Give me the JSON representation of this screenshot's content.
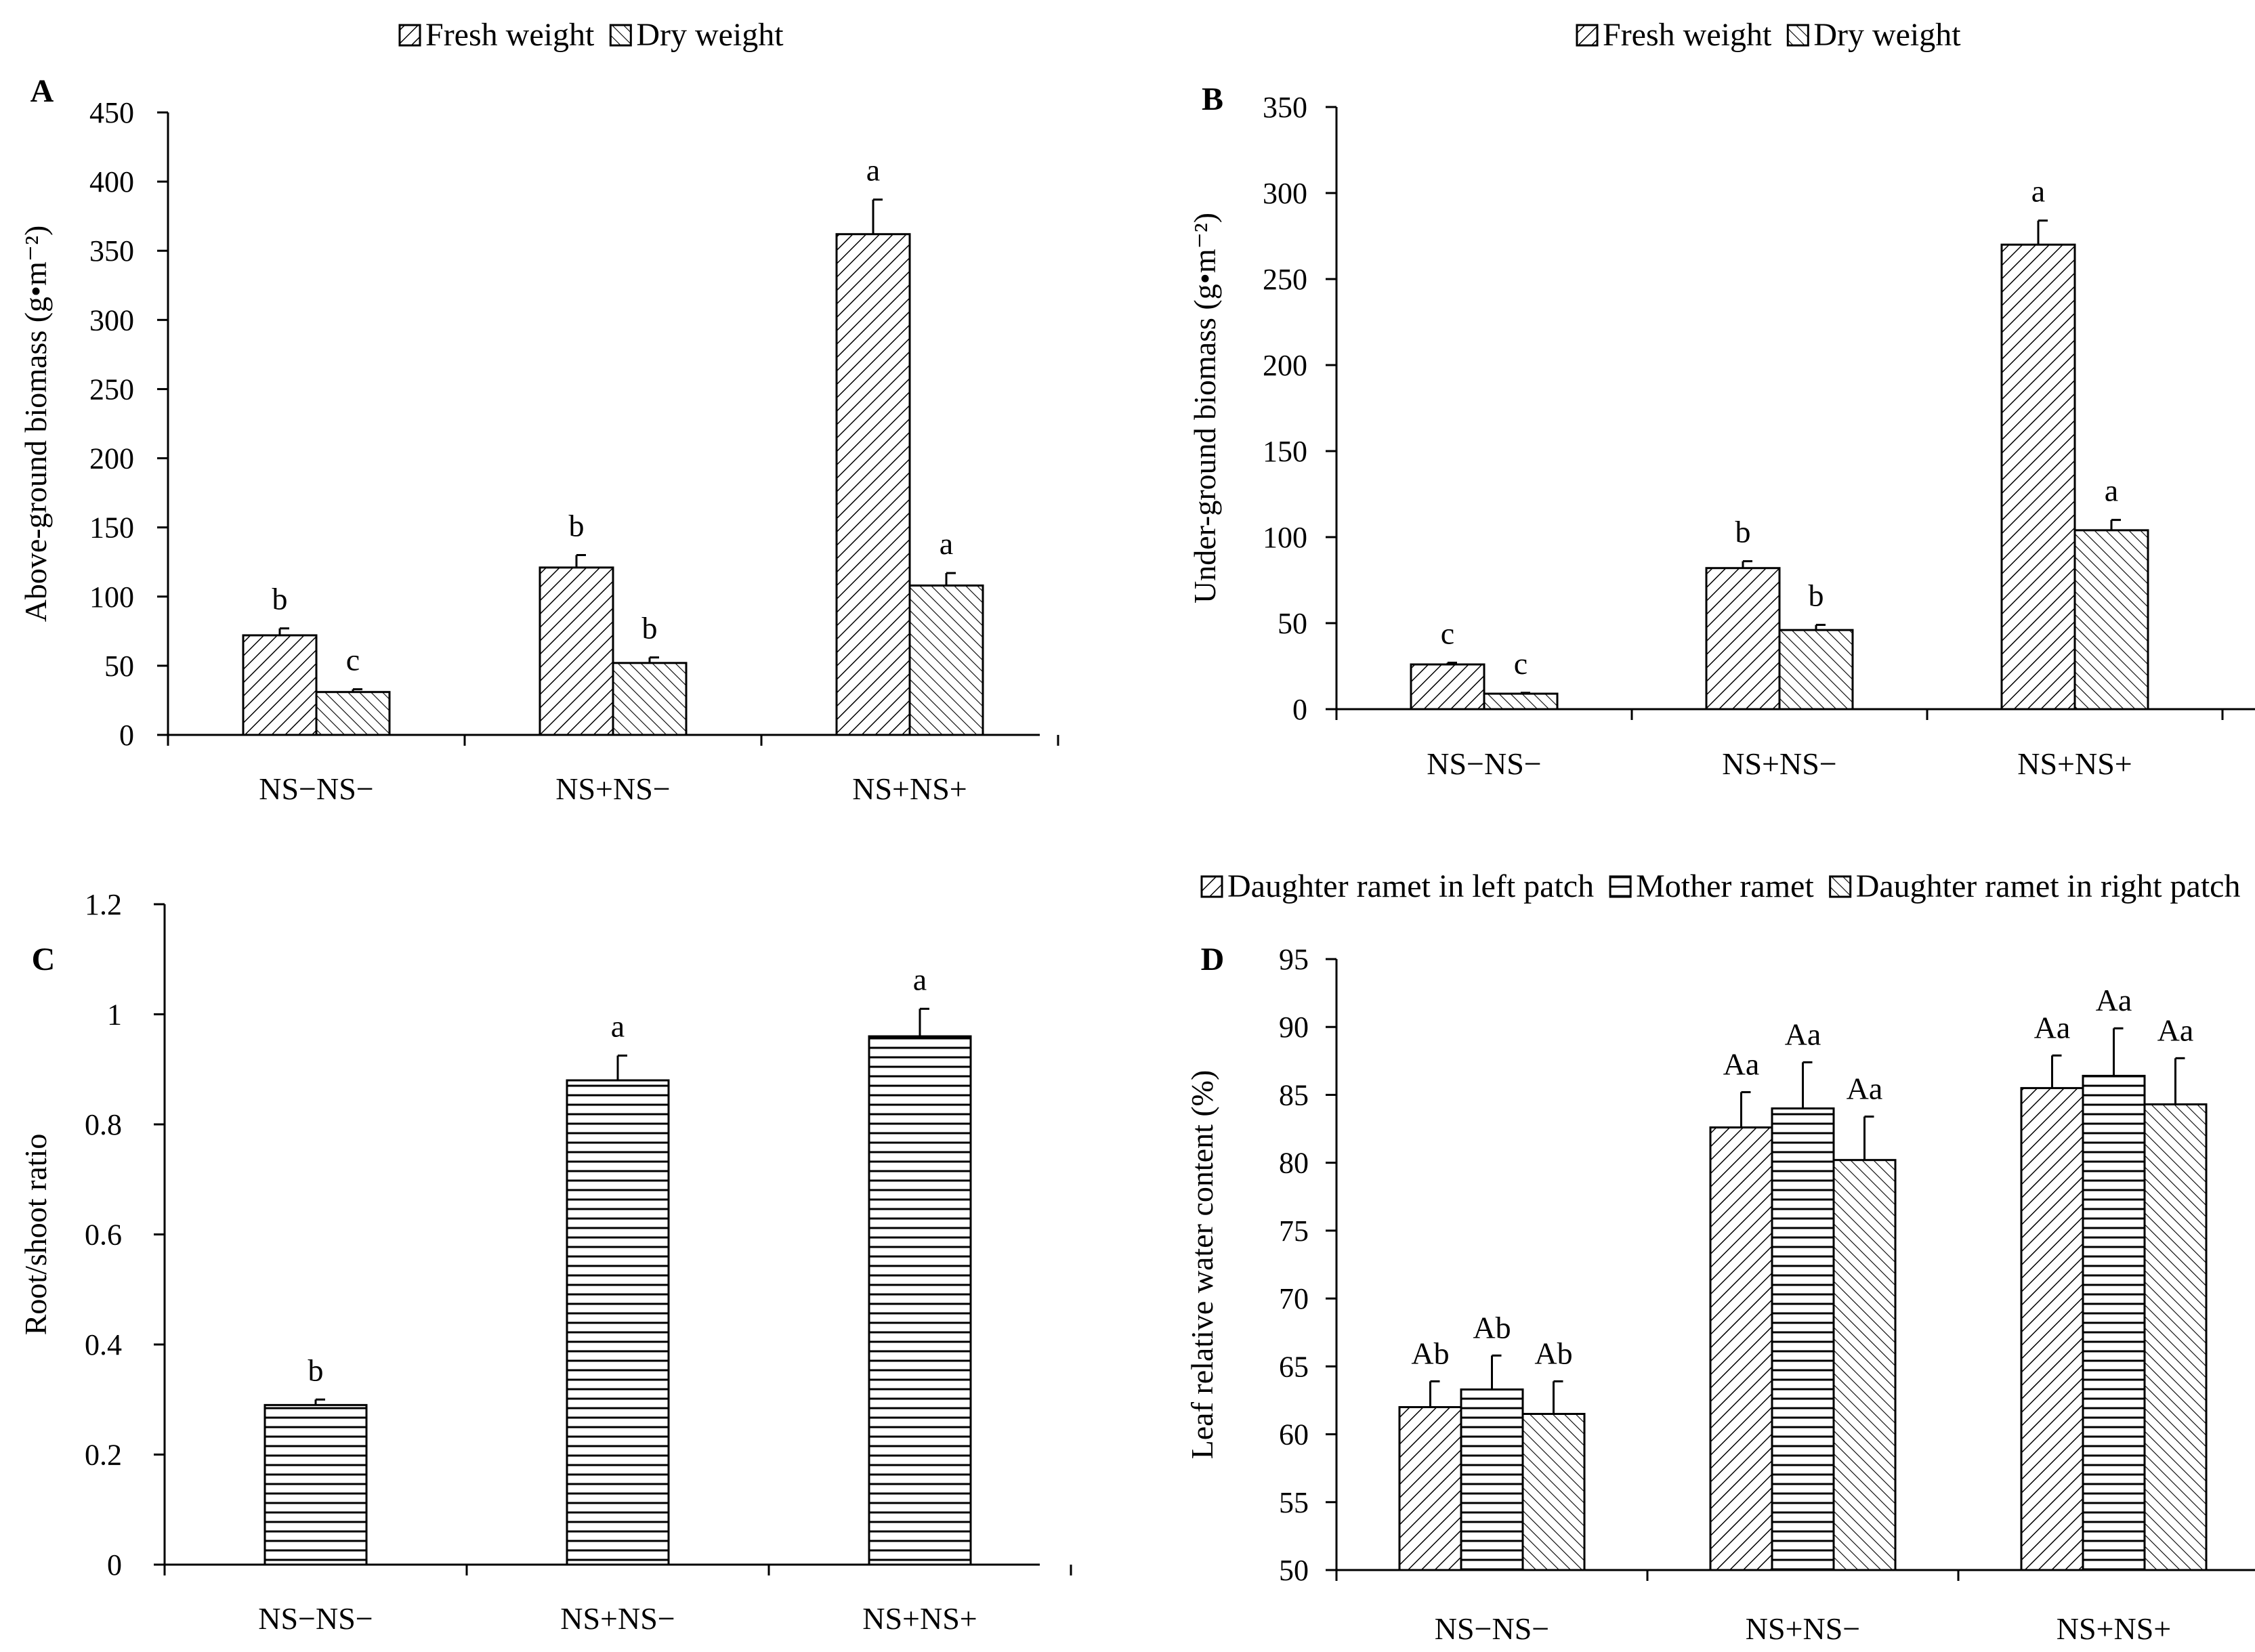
{
  "chart_data": [
    {
      "panel": "A",
      "type": "bar",
      "ylabel": "Above-ground biomass (g•m⁻²)",
      "ylim": [
        0,
        450
      ],
      "yticks": [
        "0",
        "50",
        "100",
        "150",
        "200",
        "250",
        "300",
        "350",
        "400",
        "450"
      ],
      "categories": [
        "NS−NS−",
        "NS+NS−",
        "NS+NS+"
      ],
      "legend": [
        "Fresh weight",
        "Dry weight"
      ],
      "series": [
        {
          "name": "Fresh weight",
          "pattern": "diag",
          "values": [
            72,
            121,
            362
          ],
          "errors": [
            5,
            9,
            25
          ],
          "labels": [
            "b",
            "b",
            "a"
          ]
        },
        {
          "name": "Dry weight",
          "pattern": "back",
          "values": [
            31,
            52,
            108
          ],
          "errors": [
            2,
            4,
            9
          ],
          "labels": [
            "c",
            "b",
            "a"
          ]
        }
      ]
    },
    {
      "panel": "B",
      "type": "bar",
      "ylabel": "Under-ground biomass (g•m⁻²)",
      "ylim": [
        0,
        350
      ],
      "yticks": [
        "0",
        "50",
        "100",
        "150",
        "200",
        "250",
        "300",
        "350"
      ],
      "categories": [
        "NS−NS−",
        "NS+NS−",
        "NS+NS+"
      ],
      "legend": [
        "Fresh weight",
        "Dry weight"
      ],
      "series": [
        {
          "name": "Fresh weight",
          "pattern": "diag",
          "values": [
            26,
            82,
            270
          ],
          "errors": [
            1,
            4,
            14
          ],
          "labels": [
            "c",
            "b",
            "a"
          ]
        },
        {
          "name": "Dry weight",
          "pattern": "back",
          "values": [
            9,
            46,
            104
          ],
          "errors": [
            0.5,
            3,
            6
          ],
          "labels": [
            "c",
            "b",
            "a"
          ]
        }
      ]
    },
    {
      "panel": "C",
      "type": "bar",
      "ylabel": "Root/shoot ratio",
      "ylim": [
        0,
        1.2
      ],
      "yticks": [
        "0",
        "0.2",
        "0.4",
        "0.6",
        "0.8",
        "1",
        "1.2"
      ],
      "categories": [
        "NS−NS−",
        "NS+NS−",
        "NS+NS+"
      ],
      "legend": [],
      "series": [
        {
          "name": "Root/shoot ratio",
          "pattern": "horiz",
          "values": [
            0.29,
            0.88,
            0.96
          ],
          "errors": [
            0.01,
            0.045,
            0.05
          ],
          "labels": [
            "b",
            "a",
            "a"
          ]
        }
      ]
    },
    {
      "panel": "D",
      "type": "bar",
      "ylabel": "Leaf relative water content (%)",
      "ylim": [
        50,
        95
      ],
      "yticks": [
        "50",
        "55",
        "60",
        "65",
        "70",
        "75",
        "80",
        "85",
        "90",
        "95"
      ],
      "categories": [
        "NS−NS−",
        "NS+NS−",
        "NS+NS+"
      ],
      "legend": [
        "Daughter ramet in left patch",
        "Mother ramet",
        "Daughter ramet in right patch"
      ],
      "series": [
        {
          "name": "Daughter ramet in left patch",
          "pattern": "diag",
          "values": [
            62.0,
            82.6,
            85.5
          ],
          "errors": [
            1.9,
            2.6,
            2.4
          ],
          "labels": [
            "Ab",
            "Aa",
            "Aa"
          ]
        },
        {
          "name": "Mother ramet",
          "pattern": "horiz",
          "values": [
            63.3,
            84.0,
            86.4
          ],
          "errors": [
            2.5,
            3.4,
            3.5
          ],
          "labels": [
            "Ab",
            "Aa",
            "Aa"
          ]
        },
        {
          "name": "Daughter ramet in right patch",
          "pattern": "back",
          "values": [
            61.5,
            80.2,
            84.3
          ],
          "errors": [
            2.4,
            3.2,
            3.4
          ],
          "labels": [
            "Ab",
            "Aa",
            "Aa"
          ]
        }
      ]
    }
  ]
}
